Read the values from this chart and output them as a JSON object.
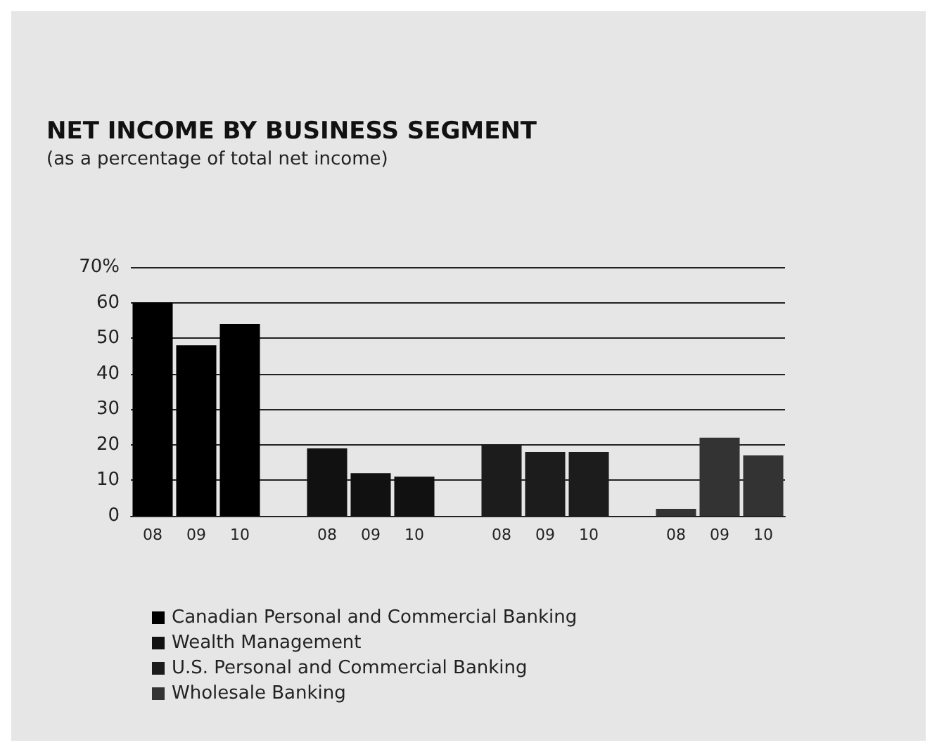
{
  "chart_data": {
    "type": "bar",
    "title": "NET INCOME BY BUSINESS SEGMENT",
    "subtitle": "(as a percentage of total net income)",
    "categories": [
      "08",
      "09",
      "10",
      null,
      "08",
      "09",
      "10",
      null,
      "08",
      "09",
      "10",
      null,
      "08",
      "09",
      "10"
    ],
    "series": [
      {
        "name": "Canadian Personal and Commercial Banking",
        "color": "#000000",
        "values": [
          60,
          48,
          54,
          null,
          null,
          null,
          null,
          null,
          null,
          null,
          null,
          null,
          null,
          null,
          null
        ]
      },
      {
        "name": "Wealth Management",
        "color": "#111111",
        "values": [
          null,
          null,
          null,
          null,
          19,
          12,
          11,
          null,
          null,
          null,
          null,
          null,
          null,
          null,
          null
        ]
      },
      {
        "name": "U.S. Personal and Commercial Banking",
        "color": "#1c1c1c",
        "values": [
          null,
          null,
          null,
          null,
          null,
          null,
          null,
          null,
          20,
          18,
          18,
          null,
          null,
          null,
          null
        ]
      },
      {
        "name": "Wholesale Banking",
        "color": "#333333",
        "values": [
          null,
          null,
          null,
          null,
          null,
          null,
          null,
          null,
          null,
          null,
          null,
          null,
          2,
          22,
          17
        ]
      }
    ],
    "stacked": true,
    "ylim": [
      0,
      70
    ],
    "yticks": [
      0,
      10,
      20,
      30,
      40,
      50,
      60,
      {
        "value": 70,
        "label": "70%"
      }
    ],
    "grid": "y",
    "legend": "bottom left"
  }
}
